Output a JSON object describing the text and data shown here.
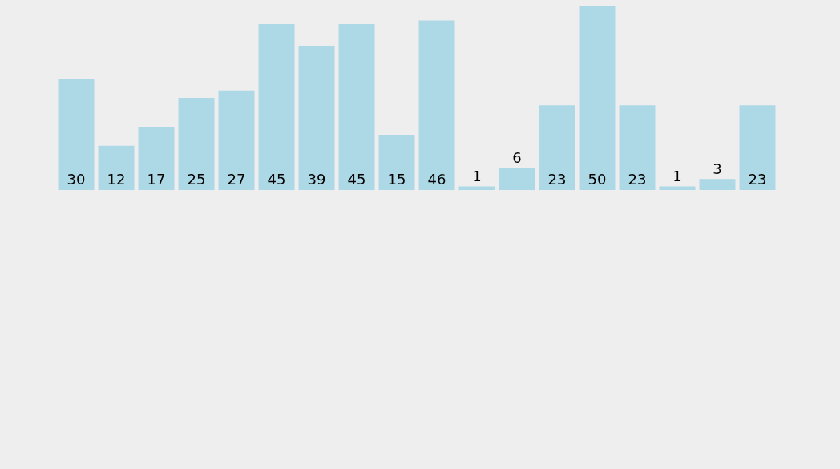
{
  "chart_data": {
    "type": "bar",
    "categories": [
      null,
      null,
      null,
      null,
      null,
      null,
      null,
      null,
      null,
      null,
      null,
      null,
      null,
      null,
      null,
      null,
      null,
      null
    ],
    "values": [
      30,
      12,
      17,
      25,
      27,
      45,
      39,
      45,
      15,
      46,
      1,
      6,
      23,
      50,
      23,
      1,
      3,
      23
    ],
    "color": "#add8e6",
    "data_labels": true,
    "legend": false
  }
}
